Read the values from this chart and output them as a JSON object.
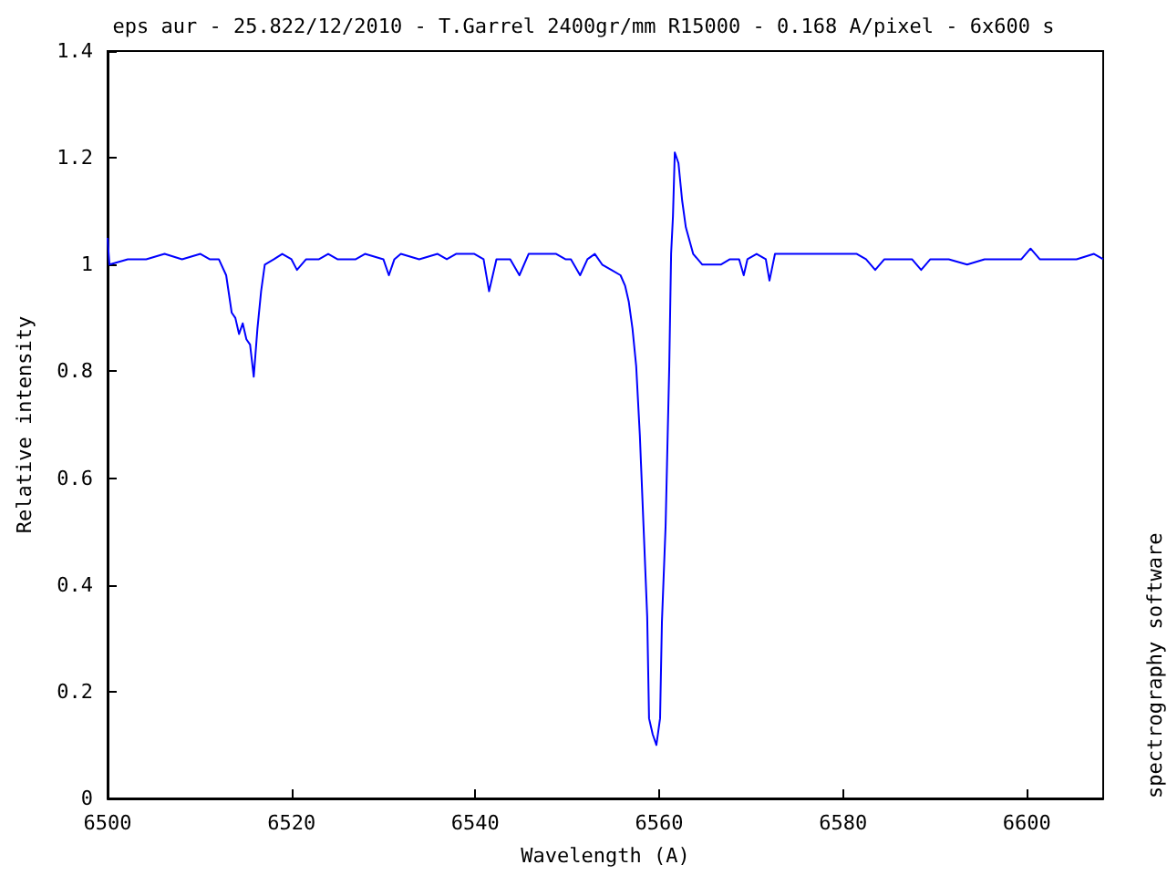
{
  "chart_data": {
    "type": "line",
    "title": "eps aur - 25.822/12/2010 - T.Garrel 2400gr/mm R15000 - 0.168 A/pixel - 6x600 s",
    "xlabel": "Wavelength (A)",
    "ylabel": "Relative intensity",
    "annotations": [
      "spectrography software"
    ],
    "xlim": [
      6500,
      6608.3
    ],
    "xticks": [
      6500,
      6520,
      6540,
      6560,
      6580,
      6600
    ],
    "ylim": [
      0,
      1.4
    ],
    "yticks": [
      0,
      0.2,
      0.4,
      0.6,
      0.8,
      1,
      1.2,
      1.4
    ],
    "grid": false,
    "marker": "none",
    "line_style": "solid",
    "series": [
      {
        "color": "#0000ff",
        "x": [
          6500.0,
          6500.2,
          6502.2,
          6504.2,
          6506.2,
          6508.1,
          6510.1,
          6511.1,
          6512.1,
          6512.9,
          6513.5,
          6513.9,
          6514.3,
          6514.7,
          6515.1,
          6515.5,
          6515.9,
          6516.3,
          6516.7,
          6517.1,
          6518.1,
          6519.0,
          6520.0,
          6520.6,
          6521.6,
          6523.0,
          6524.0,
          6525.0,
          6526.0,
          6527.0,
          6528.0,
          6530.0,
          6530.6,
          6531.2,
          6531.9,
          6533.9,
          6535.9,
          6536.9,
          6537.9,
          6539.9,
          6540.9,
          6541.5,
          6542.3,
          6543.8,
          6544.8,
          6545.8,
          6547.8,
          6548.8,
          6549.8,
          6550.4,
          6551.4,
          6552.2,
          6553.0,
          6553.8,
          6554.8,
          6555.8,
          6556.3,
          6556.7,
          6557.1,
          6557.5,
          6557.9,
          6558.3,
          6558.7,
          6558.9,
          6559.3,
          6559.7,
          6560.1,
          6560.3,
          6560.7,
          6561.1,
          6561.3,
          6561.5,
          6561.7,
          6562.1,
          6562.5,
          6562.9,
          6563.7,
          6564.7,
          6565.7,
          6566.7,
          6567.7,
          6568.7,
          6569.2,
          6569.6,
          6570.6,
          6571.6,
          6572.0,
          6572.6,
          6573.6,
          6575.6,
          6577.6,
          6579.6,
          6581.5,
          6582.5,
          6583.5,
          6584.5,
          6585.5,
          6587.5,
          6588.5,
          6589.5,
          6591.5,
          6593.5,
          6595.4,
          6597.4,
          6599.4,
          6600.4,
          6601.4,
          6603.4,
          6605.4,
          6607.3,
          6608.3
        ],
        "values": [
          1.05,
          1.0,
          1.01,
          1.01,
          1.02,
          1.01,
          1.02,
          1.01,
          1.01,
          0.98,
          0.91,
          0.9,
          0.87,
          0.89,
          0.86,
          0.85,
          0.79,
          0.88,
          0.95,
          1.0,
          1.01,
          1.02,
          1.01,
          0.99,
          1.01,
          1.01,
          1.02,
          1.01,
          1.01,
          1.01,
          1.02,
          1.01,
          0.98,
          1.01,
          1.02,
          1.01,
          1.02,
          1.01,
          1.02,
          1.02,
          1.01,
          0.95,
          1.01,
          1.01,
          0.98,
          1.02,
          1.02,
          1.02,
          1.01,
          1.01,
          0.98,
          1.01,
          1.02,
          1.0,
          0.99,
          0.98,
          0.96,
          0.93,
          0.88,
          0.81,
          0.68,
          0.51,
          0.34,
          0.15,
          0.12,
          0.1,
          0.15,
          0.33,
          0.51,
          0.81,
          1.02,
          1.09,
          1.21,
          1.19,
          1.12,
          1.07,
          1.02,
          1.0,
          1.0,
          1.0,
          1.01,
          1.01,
          0.98,
          1.01,
          1.02,
          1.01,
          0.97,
          1.02,
          1.02,
          1.02,
          1.02,
          1.02,
          1.02,
          1.01,
          0.99,
          1.01,
          1.01,
          1.01,
          0.99,
          1.01,
          1.01,
          1.0,
          1.01,
          1.01,
          1.01,
          1.03,
          1.01,
          1.01,
          1.01,
          1.02,
          1.01
        ]
      }
    ]
  }
}
